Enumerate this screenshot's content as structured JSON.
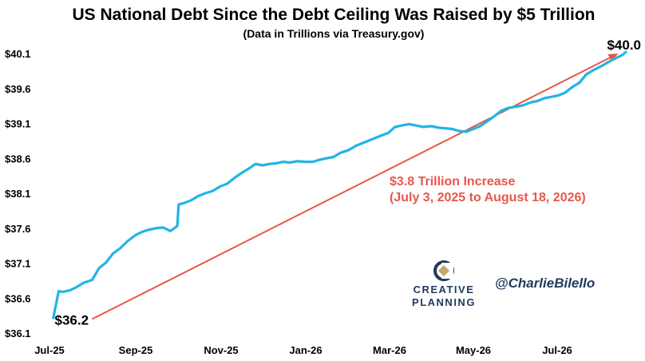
{
  "chart_data": {
    "type": "line",
    "title": "US National Debt Since the Debt Ceiling Was Raised by $5 Trillion",
    "subtitle": "(Data in Trillions via Treasury.gov)",
    "xlabel": "",
    "ylabel": "",
    "x_ticks": [
      "Jul-25",
      "Sep-25",
      "Nov-25",
      "Jan-26",
      "Mar-26",
      "May-26",
      "Jul-26"
    ],
    "y_ticks": [
      "$36.1",
      "$36.6",
      "$37.1",
      "$37.6",
      "$38.1",
      "$38.6",
      "$39.1",
      "$39.6",
      "$40.1"
    ],
    "ylim": [
      36.1,
      40.1
    ],
    "xlim": [
      "2025-07-01",
      "2026-08-18"
    ],
    "grid": false,
    "series": [
      {
        "color": "#22b4e6",
        "x": [
          "2025-07-03",
          "2025-07-07",
          "2025-07-10",
          "2025-07-15",
          "2025-07-20",
          "2025-07-25",
          "2025-07-31",
          "2025-08-05",
          "2025-08-10",
          "2025-08-15",
          "2025-08-20",
          "2025-08-25",
          "2025-08-31",
          "2025-09-05",
          "2025-09-10",
          "2025-09-15",
          "2025-09-20",
          "2025-09-25",
          "2025-09-30",
          "2025-10-01",
          "2025-10-05",
          "2025-10-10",
          "2025-10-15",
          "2025-10-20",
          "2025-10-25",
          "2025-10-31",
          "2025-11-05",
          "2025-11-10",
          "2025-11-15",
          "2025-11-20",
          "2025-11-25",
          "2025-11-30",
          "2025-12-05",
          "2025-12-10",
          "2025-12-15",
          "2025-12-20",
          "2025-12-25",
          "2025-12-31",
          "2026-01-05",
          "2026-01-10",
          "2026-01-15",
          "2026-01-20",
          "2026-01-25",
          "2026-01-31",
          "2026-02-05",
          "2026-02-10",
          "2026-02-15",
          "2026-02-20",
          "2026-02-25",
          "2026-02-28",
          "2026-03-05",
          "2026-03-10",
          "2026-03-15",
          "2026-03-20",
          "2026-03-25",
          "2026-03-31",
          "2026-04-05",
          "2026-04-10",
          "2026-04-15",
          "2026-04-20",
          "2026-04-25",
          "2026-04-30",
          "2026-05-05",
          "2026-05-10",
          "2026-05-15",
          "2026-05-20",
          "2026-05-25",
          "2026-05-31",
          "2026-06-05",
          "2026-06-10",
          "2026-06-15",
          "2026-06-20",
          "2026-06-25",
          "2026-06-30",
          "2026-07-05",
          "2026-07-10",
          "2026-07-15",
          "2026-07-20",
          "2026-07-25",
          "2026-07-31",
          "2026-08-05",
          "2026-08-10",
          "2026-08-15",
          "2026-08-18"
        ],
        "values": [
          36.22,
          36.62,
          36.61,
          36.63,
          36.68,
          36.74,
          36.78,
          36.95,
          37.03,
          37.16,
          37.23,
          37.33,
          37.42,
          37.47,
          37.5,
          37.52,
          37.53,
          37.48,
          37.55,
          37.86,
          37.88,
          37.92,
          37.98,
          38.02,
          38.05,
          38.12,
          38.16,
          38.24,
          38.31,
          38.37,
          38.44,
          38.42,
          38.44,
          38.45,
          38.47,
          38.46,
          38.48,
          38.47,
          38.47,
          38.5,
          38.52,
          38.54,
          38.6,
          38.64,
          38.7,
          38.74,
          38.78,
          38.82,
          38.86,
          38.88,
          38.97,
          38.99,
          39.01,
          38.99,
          38.97,
          38.98,
          38.96,
          38.95,
          38.94,
          38.91,
          38.9,
          38.94,
          38.98,
          39.05,
          39.12,
          39.2,
          39.24,
          39.26,
          39.28,
          39.32,
          39.34,
          39.38,
          39.4,
          39.42,
          39.46,
          39.54,
          39.6,
          39.72,
          39.78,
          39.84,
          39.9,
          39.95,
          40.0,
          40.05
        ]
      }
    ],
    "annotations": {
      "start_label": "$36.2",
      "end_label": "$40.0",
      "arrow_color": "#e8574a",
      "arrow_from": {
        "x": "2025-07-31",
        "y": 36.22
      },
      "arrow_to": {
        "x": "2026-08-12",
        "y": 40.02
      },
      "increase_line1": "$3.8 Trillion Increase",
      "increase_line2": "(July 3, 2025 to August 18, 2026)"
    }
  },
  "branding": {
    "logo_line1": "CREATIVE",
    "logo_line2": "PLANNING",
    "logo_icon": "creative-planning-logo-icon",
    "handle": "@CharlieBilello"
  }
}
